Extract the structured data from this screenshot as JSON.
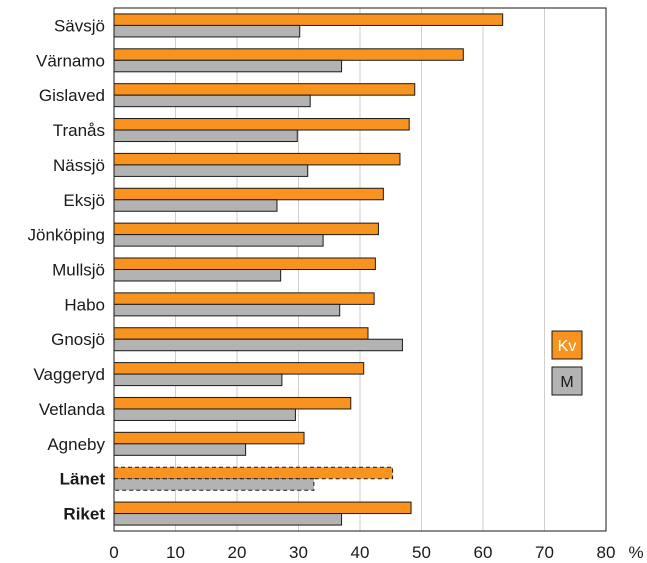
{
  "chart_data": {
    "type": "bar",
    "orientation": "horizontal",
    "categories": [
      "Sävsjö",
      "Värnamo",
      "Gislaved",
      "Tranås",
      "Nässjö",
      "Eksjö",
      "Jönköping",
      "Mullsjö",
      "Habo",
      "Gnosjö",
      "Vaggeryd",
      "Vetlanda",
      "Agneby",
      "Länet",
      "Riket"
    ],
    "bold_categories": [
      "Länet",
      "Riket"
    ],
    "dashed_categories": [
      "Länet"
    ],
    "series": [
      {
        "name": "Kv",
        "color": "#f7931e",
        "values": [
          63.2,
          56.8,
          48.9,
          48.0,
          46.5,
          43.8,
          43.0,
          42.5,
          42.3,
          41.3,
          40.6,
          38.5,
          30.9,
          45.3,
          48.3
        ]
      },
      {
        "name": "M",
        "color": "#b3b3b3",
        "values": [
          30.2,
          37.0,
          31.9,
          29.8,
          31.5,
          26.5,
          34.0,
          27.1,
          36.7,
          46.9,
          27.3,
          29.5,
          21.4,
          32.5,
          37.0
        ]
      }
    ],
    "xlim": [
      0,
      80
    ],
    "xticks": [
      0,
      10,
      20,
      30,
      40,
      50,
      60,
      70,
      80
    ],
    "xunit": "%",
    "grid": true,
    "legend_position": "right"
  }
}
